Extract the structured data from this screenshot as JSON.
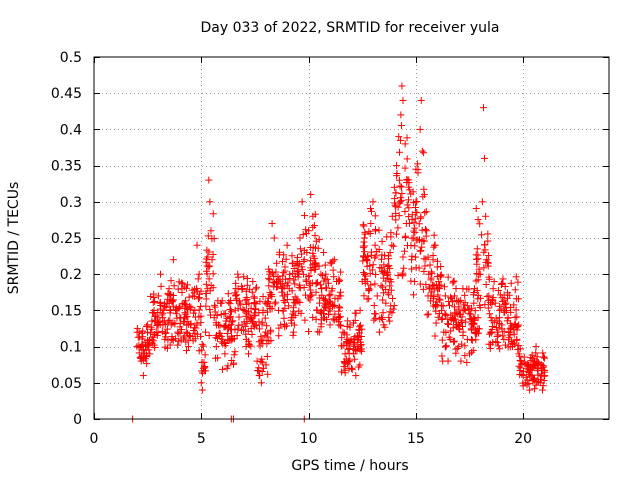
{
  "chart_data": {
    "type": "scatter",
    "title": "Day 033 of 2022, SRMTID for receiver yula",
    "xlabel": "GPS time / hours",
    "ylabel": "SRMTID / TECUs",
    "xlim": [
      0,
      24
    ],
    "ylim": [
      0,
      0.5
    ],
    "x_ticks": [
      0,
      5,
      10,
      15,
      20
    ],
    "x_tick_labels": [
      "0",
      "5",
      "10",
      "15",
      "20"
    ],
    "y_ticks": [
      0,
      0.05,
      0.1,
      0.15,
      0.2,
      0.25,
      0.3,
      0.35,
      0.4,
      0.45,
      0.5
    ],
    "y_tick_labels": [
      "0",
      "0.05",
      "0.1",
      "0.15",
      "0.2",
      "0.25",
      "0.3",
      "0.35",
      "0.4",
      "0.45",
      "0.5"
    ],
    "grid": true,
    "marker": "+",
    "color": "#ff0000",
    "series": [
      {
        "name": "SRMTID",
        "points": [
          [
            1.8,
            0.0
          ],
          [
            6.4,
            0.0
          ],
          [
            6.5,
            0.0
          ],
          [
            9.8,
            0.0
          ],
          [
            2.0,
            0.1
          ],
          [
            2.1,
            0.12
          ],
          [
            2.2,
            0.08
          ],
          [
            2.3,
            0.06
          ],
          [
            2.4,
            0.1
          ],
          [
            2.5,
            0.13
          ],
          [
            2.6,
            0.09
          ],
          [
            2.7,
            0.11
          ],
          [
            2.8,
            0.15
          ],
          [
            2.9,
            0.12
          ],
          [
            3.0,
            0.17
          ],
          [
            3.1,
            0.2
          ],
          [
            3.2,
            0.14
          ],
          [
            3.3,
            0.11
          ],
          [
            3.4,
            0.16
          ],
          [
            3.5,
            0.18
          ],
          [
            3.6,
            0.13
          ],
          [
            3.7,
            0.22
          ],
          [
            3.8,
            0.15
          ],
          [
            3.9,
            0.12
          ],
          [
            4.0,
            0.14
          ],
          [
            4.1,
            0.18
          ],
          [
            4.2,
            0.16
          ],
          [
            4.3,
            0.12
          ],
          [
            4.4,
            0.1
          ],
          [
            4.5,
            0.13
          ],
          [
            4.6,
            0.17
          ],
          [
            4.7,
            0.15
          ],
          [
            4.8,
            0.24
          ],
          [
            4.9,
            0.2
          ],
          [
            5.0,
            0.05
          ],
          [
            5.05,
            0.04
          ],
          [
            5.1,
            0.07
          ],
          [
            5.2,
            0.12
          ],
          [
            5.3,
            0.18
          ],
          [
            5.35,
            0.33
          ],
          [
            5.4,
            0.3
          ],
          [
            5.45,
            0.26
          ],
          [
            5.5,
            0.22
          ],
          [
            5.6,
            0.14
          ],
          [
            5.7,
            0.1
          ],
          [
            5.8,
            0.13
          ],
          [
            5.9,
            0.16
          ],
          [
            6.0,
            0.11
          ],
          [
            6.1,
            0.09
          ],
          [
            6.2,
            0.07
          ],
          [
            6.3,
            0.14
          ],
          [
            6.6,
            0.17
          ],
          [
            6.7,
            0.2
          ],
          [
            6.8,
            0.16
          ],
          [
            6.9,
            0.13
          ],
          [
            7.0,
            0.15
          ],
          [
            7.1,
            0.11
          ],
          [
            7.2,
            0.09
          ],
          [
            7.3,
            0.14
          ],
          [
            7.4,
            0.19
          ],
          [
            7.5,
            0.13
          ],
          [
            7.6,
            0.08
          ],
          [
            7.7,
            0.06
          ],
          [
            7.8,
            0.05
          ],
          [
            7.9,
            0.07
          ],
          [
            8.0,
            0.12
          ],
          [
            8.1,
            0.16
          ],
          [
            8.2,
            0.2
          ],
          [
            8.3,
            0.27
          ],
          [
            8.4,
            0.25
          ],
          [
            8.5,
            0.19
          ],
          [
            8.6,
            0.15
          ],
          [
            8.7,
            0.13
          ],
          [
            8.8,
            0.17
          ],
          [
            8.9,
            0.21
          ],
          [
            9.0,
            0.24
          ],
          [
            9.1,
            0.18
          ],
          [
            9.2,
            0.14
          ],
          [
            9.3,
            0.12
          ],
          [
            9.4,
            0.16
          ],
          [
            9.5,
            0.2
          ],
          [
            9.6,
            0.25
          ],
          [
            9.7,
            0.3
          ],
          [
            9.8,
            0.22
          ],
          [
            9.9,
            0.19
          ],
          [
            10.0,
            0.26
          ],
          [
            10.1,
            0.31
          ],
          [
            10.2,
            0.28
          ],
          [
            10.3,
            0.21
          ],
          [
            10.4,
            0.15
          ],
          [
            10.5,
            0.12
          ],
          [
            10.6,
            0.18
          ],
          [
            10.7,
            0.23
          ],
          [
            10.8,
            0.2
          ],
          [
            10.9,
            0.16
          ],
          [
            11.0,
            0.13
          ],
          [
            11.1,
            0.18
          ],
          [
            11.2,
            0.22
          ],
          [
            11.3,
            0.19
          ],
          [
            11.4,
            0.14
          ],
          [
            11.5,
            0.17
          ],
          [
            11.6,
            0.12
          ],
          [
            11.7,
            0.09
          ],
          [
            11.8,
            0.11
          ],
          [
            11.9,
            0.08
          ],
          [
            12.0,
            0.07
          ],
          [
            12.1,
            0.09
          ],
          [
            12.2,
            0.06
          ],
          [
            12.3,
            0.1
          ],
          [
            12.4,
            0.15
          ],
          [
            12.5,
            0.19
          ],
          [
            12.6,
            0.25
          ],
          [
            12.7,
            0.22
          ],
          [
            12.8,
            0.18
          ],
          [
            12.9,
            0.27
          ],
          [
            13.0,
            0.3
          ],
          [
            13.1,
            0.24
          ],
          [
            13.2,
            0.17
          ],
          [
            13.3,
            0.12
          ],
          [
            13.4,
            0.14
          ],
          [
            13.5,
            0.13
          ],
          [
            13.6,
            0.16
          ],
          [
            13.7,
            0.2
          ],
          [
            13.8,
            0.23
          ],
          [
            13.9,
            0.28
          ],
          [
            14.0,
            0.32
          ],
          [
            14.1,
            0.35
          ],
          [
            14.2,
            0.39
          ],
          [
            14.3,
            0.42
          ],
          [
            14.35,
            0.46
          ],
          [
            14.4,
            0.44
          ],
          [
            14.5,
            0.38
          ],
          [
            14.6,
            0.33
          ],
          [
            14.7,
            0.27
          ],
          [
            14.8,
            0.22
          ],
          [
            14.9,
            0.25
          ],
          [
            15.0,
            0.3
          ],
          [
            15.1,
            0.34
          ],
          [
            15.2,
            0.4
          ],
          [
            15.25,
            0.44
          ],
          [
            15.3,
            0.37
          ],
          [
            15.4,
            0.31
          ],
          [
            15.5,
            0.26
          ],
          [
            15.6,
            0.2
          ],
          [
            15.7,
            0.17
          ],
          [
            15.8,
            0.22
          ],
          [
            15.9,
            0.24
          ],
          [
            16.0,
            0.21
          ],
          [
            16.1,
            0.18
          ],
          [
            16.2,
            0.15
          ],
          [
            16.3,
            0.12
          ],
          [
            16.4,
            0.1
          ],
          [
            16.5,
            0.08
          ],
          [
            16.6,
            0.11
          ],
          [
            16.7,
            0.14
          ],
          [
            16.8,
            0.17
          ],
          [
            16.9,
            0.13
          ],
          [
            17.0,
            0.1
          ],
          [
            17.1,
            0.08
          ],
          [
            17.2,
            0.12
          ],
          [
            17.3,
            0.15
          ],
          [
            17.4,
            0.11
          ],
          [
            17.5,
            0.09
          ],
          [
            17.6,
            0.13
          ],
          [
            17.7,
            0.16
          ],
          [
            17.8,
            0.12
          ],
          [
            17.9,
            0.14
          ],
          [
            18.0,
            0.2
          ],
          [
            18.1,
            0.3
          ],
          [
            18.15,
            0.43
          ],
          [
            18.2,
            0.36
          ],
          [
            18.25,
            0.28
          ],
          [
            18.3,
            0.22
          ],
          [
            18.4,
            0.17
          ],
          [
            18.5,
            0.14
          ],
          [
            18.6,
            0.18
          ],
          [
            18.7,
            0.16
          ],
          [
            18.8,
            0.12
          ],
          [
            18.9,
            0.15
          ],
          [
            19.0,
            0.13
          ],
          [
            19.1,
            0.11
          ],
          [
            19.2,
            0.16
          ],
          [
            19.3,
            0.14
          ],
          [
            19.4,
            0.12
          ],
          [
            19.5,
            0.1
          ],
          [
            19.6,
            0.13
          ],
          [
            19.7,
            0.11
          ],
          [
            19.8,
            0.09
          ],
          [
            19.9,
            0.08
          ],
          [
            20.0,
            0.06
          ],
          [
            20.1,
            0.05
          ],
          [
            20.2,
            0.07
          ],
          [
            20.3,
            0.04
          ],
          [
            20.4,
            0.06
          ],
          [
            20.5,
            0.08
          ],
          [
            20.6,
            0.1
          ],
          [
            20.7,
            0.07
          ],
          [
            20.8,
            0.05
          ],
          [
            20.9,
            0.04
          ],
          [
            21.0,
            0.06
          ]
        ],
        "scatter_bands": [
          [
            2.0,
            2.6,
            0.07,
            0.14
          ],
          [
            2.6,
            3.0,
            0.08,
            0.18
          ],
          [
            3.0,
            5.0,
            0.09,
            0.2
          ],
          [
            5.0,
            5.2,
            0.04,
            0.12
          ],
          [
            5.2,
            5.6,
            0.1,
            0.3
          ],
          [
            5.6,
            6.6,
            0.06,
            0.2
          ],
          [
            6.6,
            7.6,
            0.09,
            0.21
          ],
          [
            7.6,
            8.1,
            0.05,
            0.17
          ],
          [
            8.1,
            9.6,
            0.1,
            0.24
          ],
          [
            9.6,
            10.5,
            0.11,
            0.3
          ],
          [
            10.5,
            11.5,
            0.1,
            0.23
          ],
          [
            11.5,
            12.5,
            0.06,
            0.16
          ],
          [
            12.5,
            13.3,
            0.13,
            0.3
          ],
          [
            13.3,
            14.0,
            0.11,
            0.27
          ],
          [
            14.0,
            14.7,
            0.17,
            0.44
          ],
          [
            14.7,
            15.5,
            0.15,
            0.38
          ],
          [
            15.5,
            16.2,
            0.1,
            0.26
          ],
          [
            16.2,
            17.8,
            0.07,
            0.2
          ],
          [
            17.8,
            18.4,
            0.1,
            0.3
          ],
          [
            18.4,
            19.8,
            0.08,
            0.2
          ],
          [
            19.8,
            21.0,
            0.04,
            0.1
          ]
        ]
      }
    ]
  }
}
